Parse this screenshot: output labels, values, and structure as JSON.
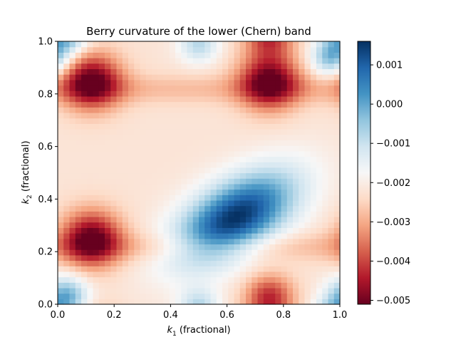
{
  "chart_data": {
    "type": "heatmap",
    "title": "Berry curvature of the lower (Chern) band",
    "xlabel": {
      "symbol": "k",
      "sub": "1",
      "text": " (fractional)"
    },
    "ylabel": {
      "symbol": "k",
      "sub": "2",
      "text": " (fractional)"
    },
    "xlim": [
      0.0,
      1.0
    ],
    "ylim": [
      0.0,
      1.0
    ],
    "x_ticks": [
      "0.0",
      "0.2",
      "0.4",
      "0.6",
      "0.8",
      "1.0"
    ],
    "y_ticks": [
      "0.0",
      "0.2",
      "0.4",
      "0.6",
      "0.8",
      "1.0"
    ],
    "grid_resolution": [
      48,
      48
    ],
    "colormap": "RdBu",
    "color_range": [
      -0.0051,
      0.0016
    ],
    "colorbar_ticks": [
      "0.001",
      "0.000",
      "−0.001",
      "−0.002",
      "−0.003",
      "−0.004",
      "−0.005"
    ],
    "colorbar_tick_values": [
      0.001,
      0.0,
      -0.001,
      -0.002,
      -0.003,
      -0.004,
      -0.005
    ],
    "features": [
      {
        "kind": "minimum",
        "center": [
          0.63,
          0.33
        ],
        "value": 0.0016,
        "orientation_deg": 35
      },
      {
        "kind": "maximum",
        "center": [
          0.12,
          0.85
        ],
        "value": -0.0051
      },
      {
        "kind": "maximum",
        "center": [
          0.75,
          0.85
        ],
        "value": -0.0051
      },
      {
        "kind": "maximum",
        "center": [
          0.12,
          0.25
        ],
        "value": -0.0051
      },
      {
        "kind": "maximum",
        "center": [
          0.75,
          0.03
        ],
        "value": -0.0045
      },
      {
        "kind": "light",
        "center": [
          0.03,
          0.03
        ],
        "value": -0.0005
      },
      {
        "kind": "light",
        "center": [
          0.97,
          0.94
        ],
        "value": -0.0005
      }
    ]
  }
}
